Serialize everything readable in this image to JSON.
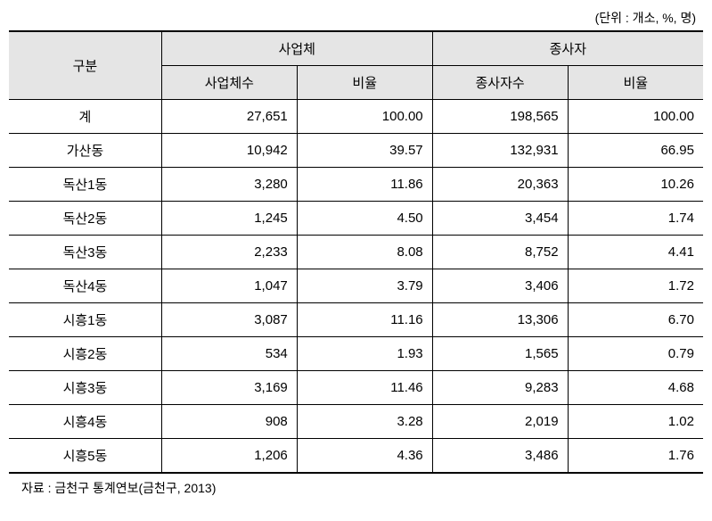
{
  "table": {
    "unit_note": "(단위 : 개소, %, 명)",
    "headers": {
      "category": "구분",
      "business": "사업체",
      "employee": "종사자",
      "business_count": "사업체수",
      "business_ratio": "비율",
      "employee_count": "종사자수",
      "employee_ratio": "비율"
    },
    "rows": [
      {
        "name": "계",
        "biz_count": "27,651",
        "biz_ratio": "100.00",
        "emp_count": "198,565",
        "emp_ratio": "100.00"
      },
      {
        "name": "가산동",
        "biz_count": "10,942",
        "biz_ratio": "39.57",
        "emp_count": "132,931",
        "emp_ratio": "66.95"
      },
      {
        "name": "독산1동",
        "biz_count": "3,280",
        "biz_ratio": "11.86",
        "emp_count": "20,363",
        "emp_ratio": "10.26"
      },
      {
        "name": "독산2동",
        "biz_count": "1,245",
        "biz_ratio": "4.50",
        "emp_count": "3,454",
        "emp_ratio": "1.74"
      },
      {
        "name": "독산3동",
        "biz_count": "2,233",
        "biz_ratio": "8.08",
        "emp_count": "8,752",
        "emp_ratio": "4.41"
      },
      {
        "name": "독산4동",
        "biz_count": "1,047",
        "biz_ratio": "3.79",
        "emp_count": "3,406",
        "emp_ratio": "1.72"
      },
      {
        "name": "시흥1동",
        "biz_count": "3,087",
        "biz_ratio": "11.16",
        "emp_count": "13,306",
        "emp_ratio": "6.70"
      },
      {
        "name": "시흥2동",
        "biz_count": "534",
        "biz_ratio": "1.93",
        "emp_count": "1,565",
        "emp_ratio": "0.79"
      },
      {
        "name": "시흥3동",
        "biz_count": "3,169",
        "biz_ratio": "11.46",
        "emp_count": "9,283",
        "emp_ratio": "4.68"
      },
      {
        "name": "시흥4동",
        "biz_count": "908",
        "biz_ratio": "3.28",
        "emp_count": "2,019",
        "emp_ratio": "1.02"
      },
      {
        "name": "시흥5동",
        "biz_count": "1,206",
        "biz_ratio": "4.36",
        "emp_count": "3,486",
        "emp_ratio": "1.76"
      }
    ],
    "source": "자료 : 금천구 통계연보(금천구, 2013)",
    "colors": {
      "header_bg": "#e5e5e5",
      "border": "#000000",
      "text": "#000000",
      "background": "#ffffff"
    },
    "fonts": {
      "body_size": 15,
      "note_size": 14
    }
  }
}
